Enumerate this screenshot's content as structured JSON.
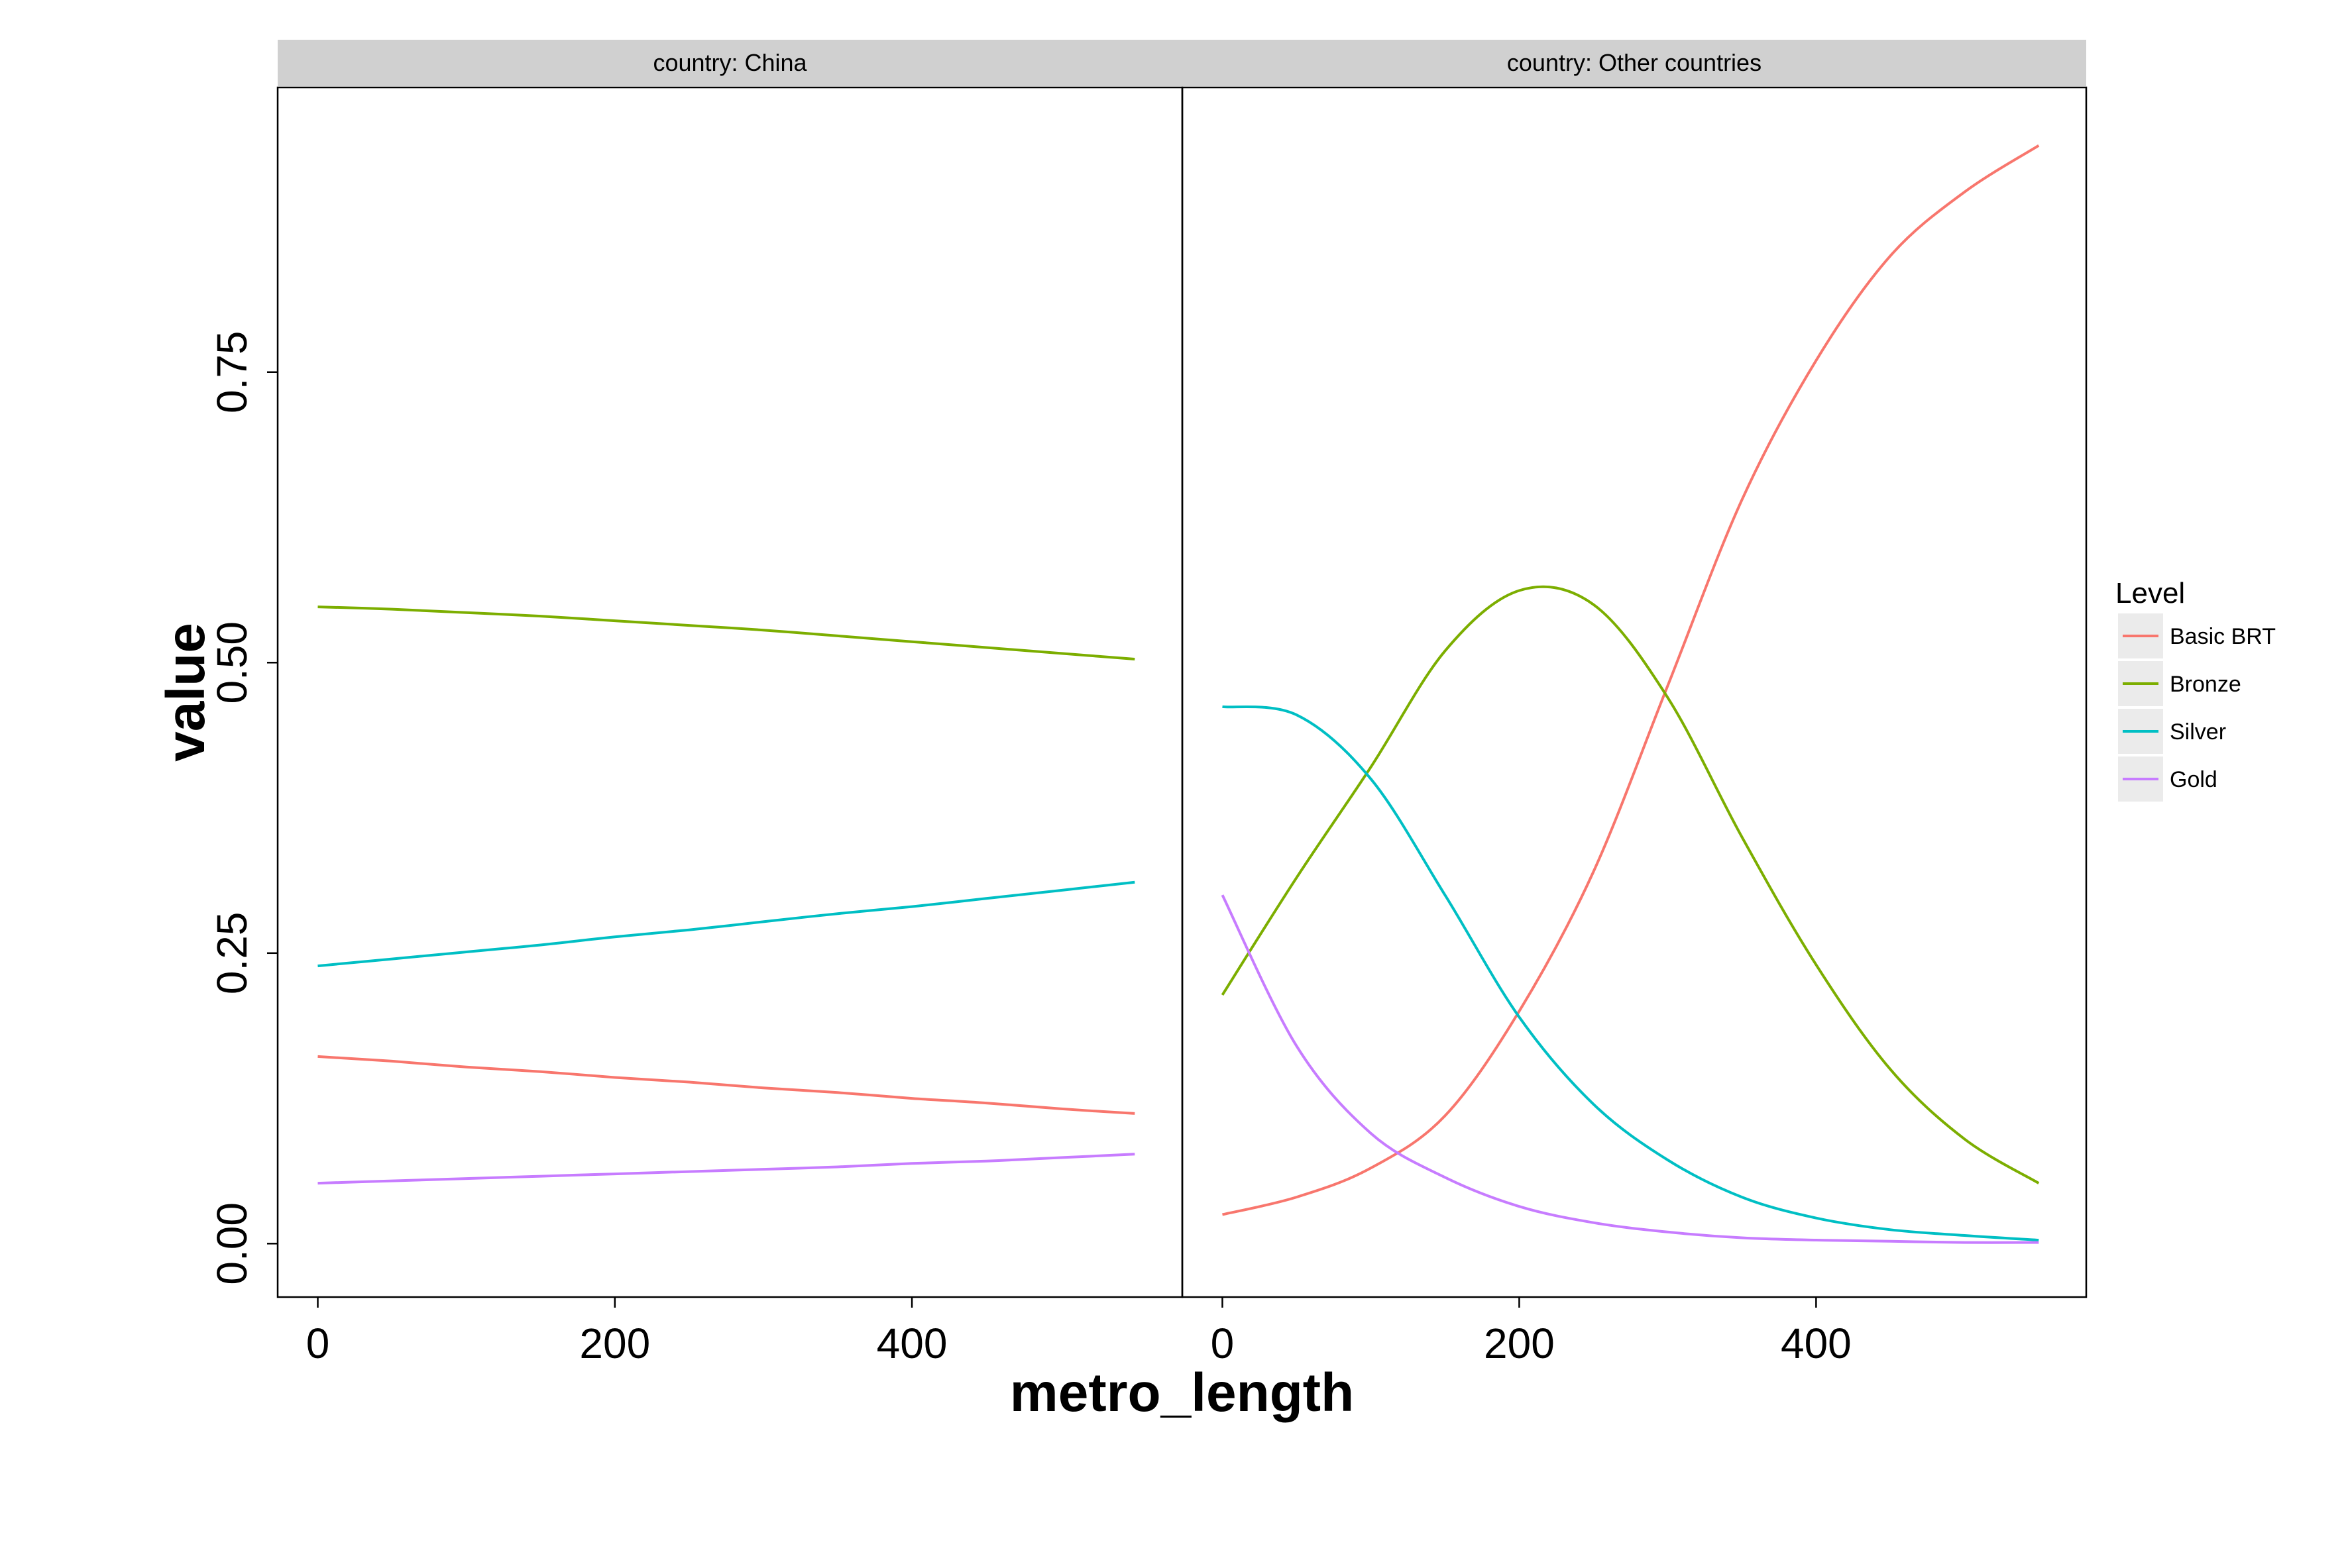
{
  "chart_data": {
    "type": "line",
    "facet_label_prefix": "country: ",
    "xlabel": "metro_length",
    "ylabel": "value",
    "xlim": [
      -27,
      582
    ],
    "ylim": [
      -0.046,
      0.995
    ],
    "xticks": [
      0,
      200,
      400
    ],
    "xtick_labels": [
      "0",
      "200",
      "400"
    ],
    "yticks": [
      0,
      0.25,
      0.5,
      0.75
    ],
    "ytick_labels": [
      "0.00",
      "0.25",
      "0.50",
      "0.75"
    ],
    "grid": false,
    "legend": {
      "title": "Level",
      "placement": "right",
      "entries": [
        "Basic BRT",
        "Bronze",
        "Silver",
        "Gold"
      ]
    },
    "colors": {
      "Basic BRT": "#F8766D",
      "Bronze": "#7CAE00",
      "Silver": "#00BFC4",
      "Gold": "#C77CFF",
      "strip_background": "#D0D0D0",
      "panel_border": "#000000"
    },
    "x": [
      0,
      50,
      100,
      150,
      200,
      250,
      300,
      350,
      400,
      450,
      500,
      550
    ],
    "panels": [
      {
        "country": "China",
        "series": [
          {
            "name": "Basic BRT",
            "values": [
              0.161,
              0.157,
              0.152,
              0.148,
              0.143,
              0.139,
              0.134,
              0.13,
              0.125,
              0.121,
              0.116,
              0.112
            ]
          },
          {
            "name": "Bronze",
            "values": [
              0.548,
              0.546,
              0.543,
              0.54,
              0.536,
              0.532,
              0.528,
              0.523,
              0.518,
              0.513,
              0.508,
              0.503
            ]
          },
          {
            "name": "Silver",
            "values": [
              0.239,
              0.245,
              0.251,
              0.257,
              0.264,
              0.27,
              0.277,
              0.284,
              0.29,
              0.297,
              0.304,
              0.311
            ]
          },
          {
            "name": "Gold",
            "values": [
              0.052,
              0.054,
              0.056,
              0.058,
              0.06,
              0.062,
              0.064,
              0.066,
              0.069,
              0.071,
              0.074,
              0.077
            ]
          }
        ]
      },
      {
        "country": "Other countries",
        "series": [
          {
            "name": "Basic BRT",
            "values": [
              0.025,
              0.04,
              0.065,
              0.11,
              0.2,
              0.32,
              0.48,
              0.64,
              0.76,
              0.85,
              0.905,
              0.945
            ]
          },
          {
            "name": "Bronze",
            "values": [
              0.214,
              0.315,
              0.41,
              0.51,
              0.562,
              0.55,
              0.47,
              0.35,
              0.24,
              0.15,
              0.09,
              0.052
            ]
          },
          {
            "name": "Silver",
            "values": [
              0.462,
              0.455,
              0.4,
              0.3,
              0.195,
              0.12,
              0.072,
              0.04,
              0.022,
              0.012,
              0.007,
              0.003
            ]
          },
          {
            "name": "Gold",
            "values": [
              0.3,
              0.17,
              0.095,
              0.057,
              0.032,
              0.018,
              0.01,
              0.005,
              0.003,
              0.002,
              0.001,
              0.001
            ]
          }
        ]
      }
    ]
  }
}
